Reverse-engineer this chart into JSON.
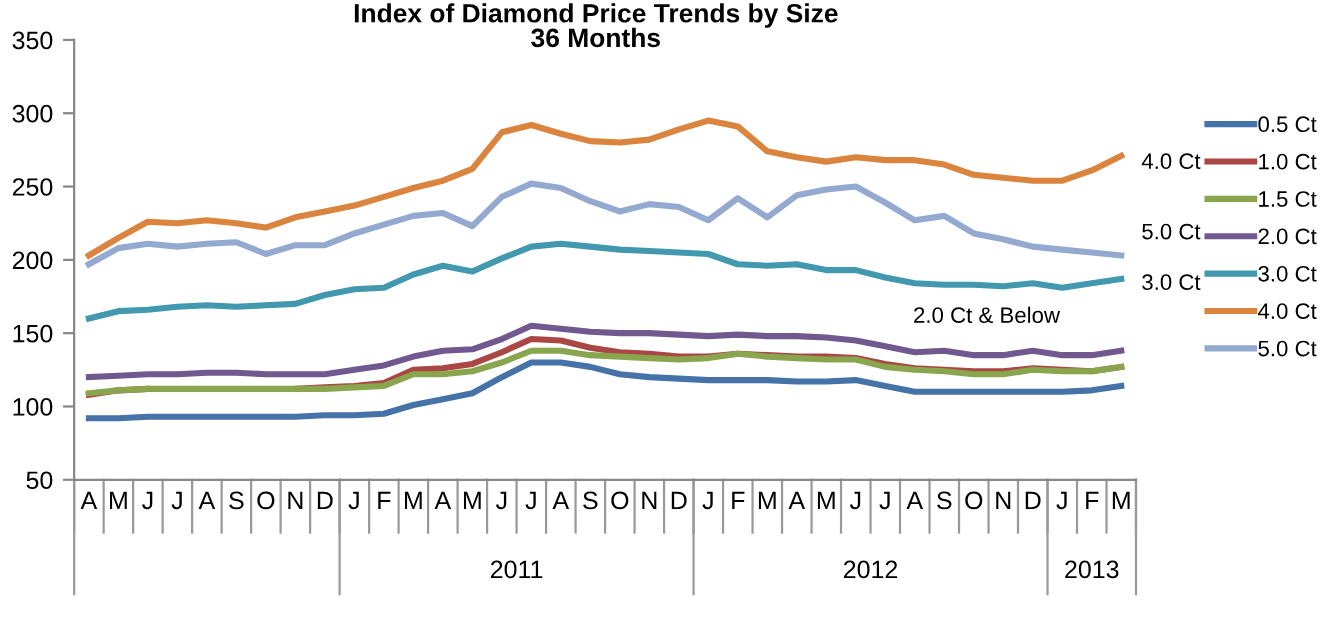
{
  "chart_data": {
    "type": "line",
    "title": "Index of Diamond Price Trends by Size\n36 Months",
    "categories": [
      "A",
      "M",
      "J",
      "J",
      "A",
      "S",
      "O",
      "N",
      "D",
      "J",
      "F",
      "M",
      "A",
      "M",
      "J",
      "J",
      "A",
      "S",
      "O",
      "N",
      "D",
      "J",
      "F",
      "M",
      "A",
      "M",
      "J",
      "J",
      "A",
      "S",
      "O",
      "N",
      "D",
      "J",
      "F",
      "M"
    ],
    "x2lim": [
      2010.25,
      2013.25
    ],
    "x2ticks": [
      {
        "value": 2011.5,
        "label": "2011"
      },
      {
        "value": 2012.5,
        "label": "2012"
      },
      {
        "value": 2013.125,
        "label": "2013"
      }
    ],
    "ylim": [
      50,
      350
    ],
    "yticks": [
      50,
      100,
      150,
      200,
      250,
      300,
      350
    ],
    "grid": false,
    "legend": "right",
    "marker": "none",
    "line_style": "solid",
    "series": [
      {
        "name": "0.5 Ct",
        "color": "#4572a7",
        "values": [
          92,
          92,
          93,
          93,
          93,
          93,
          93,
          93,
          94,
          94,
          95,
          101,
          105,
          109,
          120,
          130,
          130,
          127,
          122,
          120,
          119,
          118,
          118,
          118,
          117,
          117,
          118,
          114,
          110,
          110,
          110,
          110,
          110,
          110,
          111,
          114
        ]
      },
      {
        "name": "1.0 Ct",
        "color": "#aa4643",
        "values": [
          108,
          111,
          112,
          null,
          null,
          null,
          null,
          112,
          113,
          114,
          116,
          125,
          126,
          129,
          137,
          146,
          145,
          140,
          137,
          136,
          134,
          134,
          136,
          135,
          134,
          134,
          133,
          129,
          126,
          125,
          124,
          124,
          126,
          125,
          124,
          127
        ]
      },
      {
        "name": "1.5 Ct",
        "color": "#89a54e",
        "values": [
          109,
          111,
          112,
          112,
          112,
          112,
          112,
          112,
          112,
          113,
          114,
          122,
          122,
          124,
          130,
          138,
          138,
          135,
          134,
          133,
          132,
          133,
          136,
          134,
          133,
          132,
          132,
          127,
          125,
          124,
          122,
          122,
          125,
          124,
          124,
          127
        ]
      },
      {
        "name": "2.0 Ct",
        "color": "#71588f",
        "values": [
          120,
          121,
          122,
          122,
          123,
          123,
          122,
          122,
          122,
          125,
          128,
          134,
          138,
          139,
          146,
          155,
          153,
          151,
          150,
          150,
          149,
          148,
          149,
          148,
          148,
          147,
          145,
          141,
          137,
          138,
          135,
          135,
          138,
          135,
          135,
          138
        ]
      },
      {
        "name": "3.0 Ct",
        "color": "#4198af",
        "values": [
          160,
          165,
          166,
          168,
          169,
          168,
          169,
          170,
          176,
          180,
          181,
          190,
          196,
          192,
          201,
          209,
          211,
          209,
          207,
          206,
          205,
          204,
          197,
          196,
          197,
          193,
          193,
          188,
          184,
          183,
          183,
          182,
          184,
          181,
          184,
          187
        ]
      },
      {
        "name": "4.0 Ct",
        "color": "#db843d",
        "values": [
          203,
          215,
          226,
          225,
          227,
          225,
          222,
          229,
          233,
          237,
          243,
          249,
          254,
          262,
          287,
          292,
          286,
          281,
          280,
          282,
          289,
          295,
          291,
          274,
          270,
          267,
          270,
          268,
          268,
          265,
          258,
          256,
          254,
          254,
          261,
          271
        ]
      },
      {
        "name": "5.0 Ct",
        "color": "#93a9cf",
        "values": [
          197,
          208,
          211,
          209,
          211,
          212,
          204,
          210,
          210,
          218,
          224,
          230,
          232,
          223,
          243,
          252,
          249,
          240,
          233,
          238,
          236,
          227,
          242,
          229,
          244,
          248,
          250,
          239,
          227,
          230,
          218,
          214,
          209,
          207,
          205,
          203
        ]
      }
    ],
    "annotations": [
      "4.0 Ct",
      "5.0 Ct",
      "3.0 Ct",
      "2.0 Ct & Below"
    ]
  }
}
